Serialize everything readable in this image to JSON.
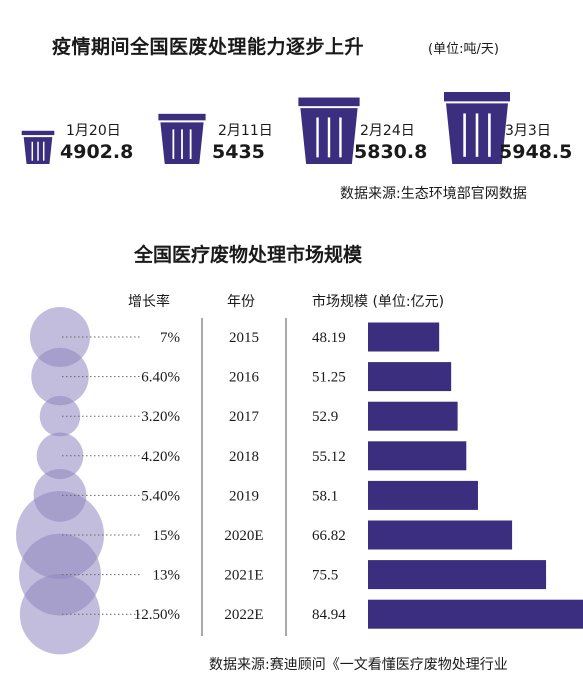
{
  "top_section": {
    "title": "疫情期间全国医废处理能力逐步上升",
    "unit": "(单位:吨/天)",
    "items": [
      {
        "date": "1月20日",
        "value": "4902.8",
        "num": 4902.8
      },
      {
        "date": "2月11日",
        "value": "5435",
        "num": 5435
      },
      {
        "date": "2月24日",
        "value": "5830.8",
        "num": 5830.8
      },
      {
        "date": "3月3日",
        "value": "5948.5",
        "num": 5948.5
      }
    ],
    "source": "数据来源:生态环境部官网数据",
    "icon": "trash-can-icon",
    "color": "#3c2e7e"
  },
  "chart_data": {
    "type": "bar",
    "title": "全国医疗废物处理市场规模",
    "columns": {
      "rate": "增长率",
      "year": "年份",
      "size": "市场规模 (单位:亿元)"
    },
    "categories": [
      "2015",
      "2016",
      "2017",
      "2018",
      "2019",
      "2020E",
      "2021E",
      "2022E"
    ],
    "growth_labels": [
      "7%",
      "6.40%",
      "3.20%",
      "4.20%",
      "5.40%",
      "15%",
      "13%",
      "12.50%"
    ],
    "growth_rates": [
      7,
      6.4,
      3.2,
      4.2,
      5.4,
      15,
      13,
      12.5
    ],
    "values": [
      48.19,
      51.25,
      52.9,
      55.12,
      58.1,
      66.82,
      75.5,
      84.94
    ],
    "value_labels": [
      "48.19",
      "51.25",
      "52.9",
      "55.12",
      "58.1",
      "66.82",
      "75.5",
      "84.94"
    ],
    "bar_color": "#3c2e7e",
    "bubble_color": "#8f87bf",
    "source": "数据来源:赛迪顾问《一文看懂医疗废物处理行业"
  }
}
